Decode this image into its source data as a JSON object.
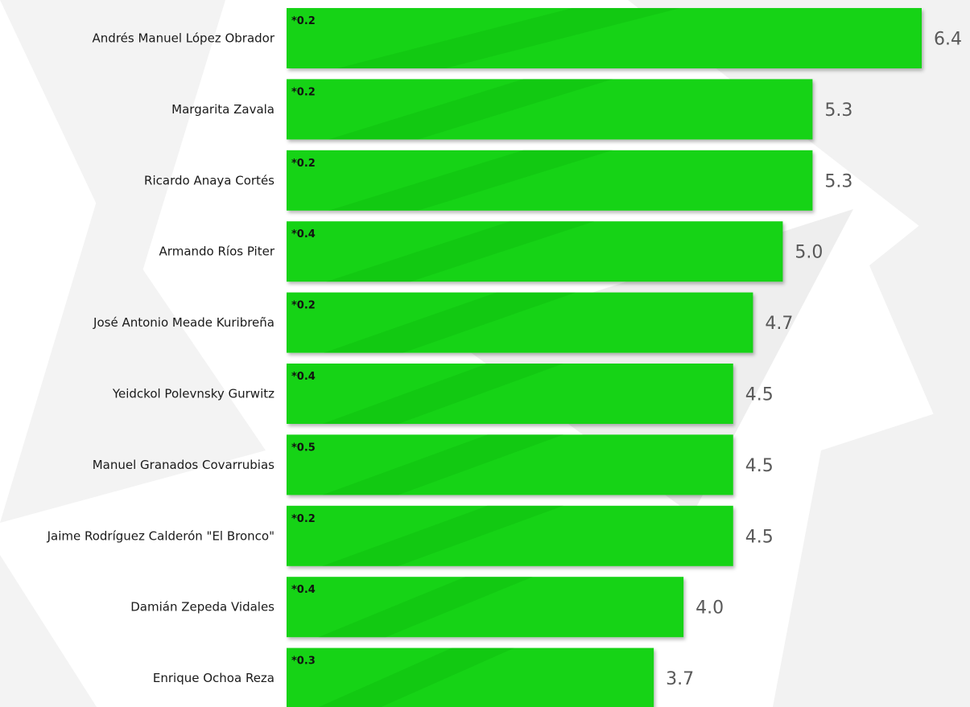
{
  "chart_data": {
    "type": "bar",
    "orientation": "horizontal",
    "categories": [
      "Andrés Manuel López Obrador",
      "Margarita Zavala",
      "Ricardo Anaya Cortés",
      "Armando Ríos Piter",
      "José Antonio Meade Kuribreña",
      "Yeidckol Polevnsky Gurwitz",
      "Manuel Granados Covarrubias",
      "Jaime Rodríguez Calderón \"El Bronco\"",
      "Damián Zepeda Vidales",
      "Enrique Ochoa Reza"
    ],
    "values": [
      6.4,
      5.3,
      5.3,
      5.0,
      4.7,
      4.5,
      4.5,
      4.5,
      4.0,
      3.7
    ],
    "value_labels": [
      "6.4",
      "5.3",
      "5.3",
      "5.0",
      "4.7",
      "4.5",
      "4.5",
      "4.5",
      "4.0",
      "3.7"
    ],
    "error_labels": [
      "*0.2",
      "*0.2",
      "*0.2",
      "*0.4",
      "*0.2",
      "*0.4",
      "*0.5",
      "*0.2",
      "*0.4",
      "*0.3"
    ],
    "xlim": [
      0,
      6.4
    ],
    "grid": false,
    "legend": "none",
    "colors": {
      "bar": "#12d312",
      "bar_stripe": "#0cb60c",
      "value_text": "#595959",
      "error_text": "#111111",
      "label_text": "#1a1a1a",
      "background_watermark": "#f1f1f1"
    }
  }
}
